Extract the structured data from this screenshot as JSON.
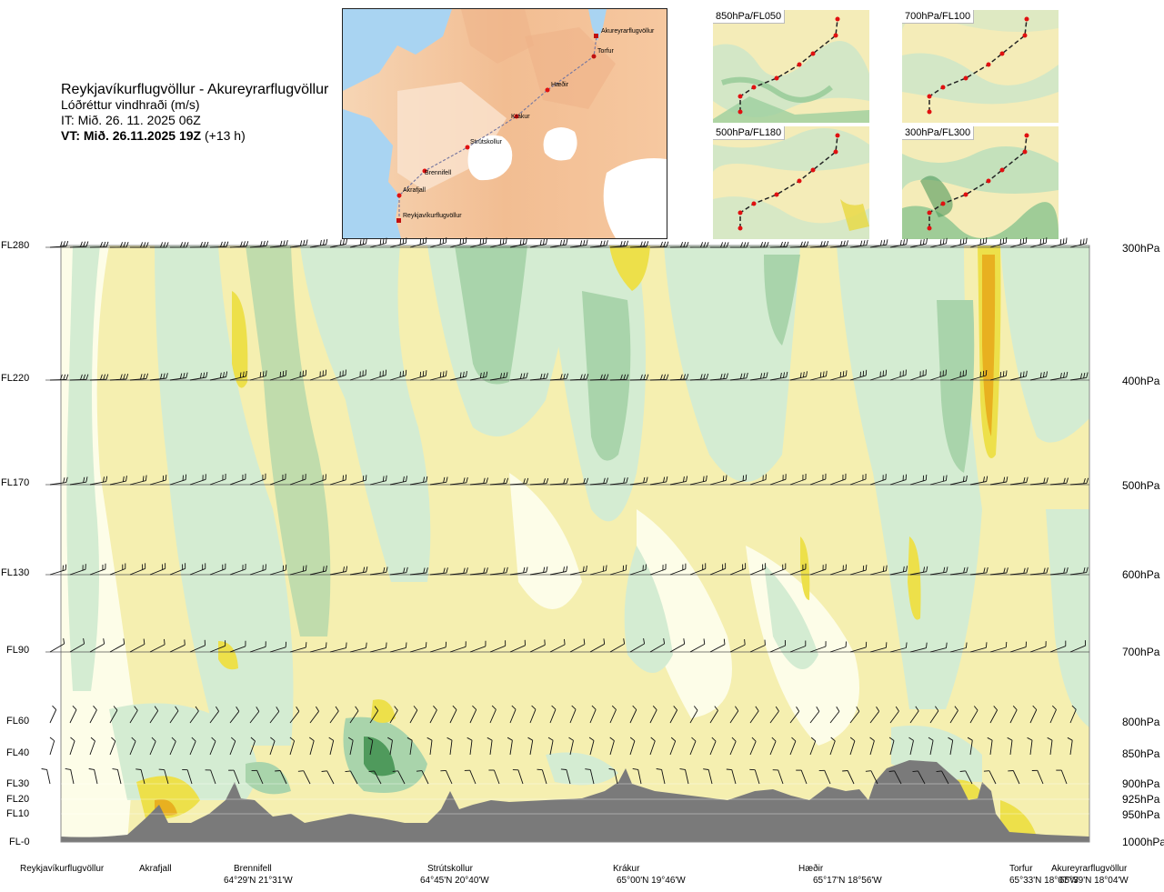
{
  "title": {
    "route": "Reykjavíkurflugvöllur - Akureyrarflugvöllur",
    "variable": "Lóðréttur vindhraði (m/s)",
    "it": "IT: Mið. 26. 11. 2025 06Z",
    "vt_bold": "VT: Mið. 26.11.2025 19Z",
    "vt_extra": "(+13 h)"
  },
  "route_map": {
    "waypoints": [
      {
        "name": "Akureyrarflugvöllur"
      },
      {
        "name": "Torfur"
      },
      {
        "name": "Hæðir"
      },
      {
        "name": "Krákur"
      },
      {
        "name": "Strútskollur"
      },
      {
        "name": "Brennifell"
      },
      {
        "name": "Akrafjall"
      },
      {
        "name": "Reykjavíkurflugvöllur"
      }
    ],
    "colors": {
      "land": "#f3c7a0",
      "glacier": "#ffffff",
      "sea": "#a9d4f2",
      "route": "#7a7aa0",
      "marker": "#e01010"
    }
  },
  "mini_maps": [
    {
      "label": "850hPa/FL050"
    },
    {
      "label": "700hPa/FL100"
    },
    {
      "label": "500hPa/FL180"
    },
    {
      "label": "300hPa/FL300"
    }
  ],
  "flight_levels": [
    {
      "label": "FL280"
    },
    {
      "label": "FL220"
    },
    {
      "label": "FL170"
    },
    {
      "label": "FL130"
    },
    {
      "label": "FL90"
    },
    {
      "label": "FL60"
    },
    {
      "label": "FL40"
    },
    {
      "label": "FL30"
    },
    {
      "label": "FL20"
    },
    {
      "label": "FL10"
    },
    {
      "label": "FL-0"
    }
  ],
  "pressure_levels": [
    {
      "label": "300hPa"
    },
    {
      "label": "400hPa"
    },
    {
      "label": "500hPa"
    },
    {
      "label": "600hPa"
    },
    {
      "label": "700hPa"
    },
    {
      "label": "800hPa"
    },
    {
      "label": "850hPa"
    },
    {
      "label": "900hPa"
    },
    {
      "label": "925hPa"
    },
    {
      "label": "950hPa"
    },
    {
      "label": "1000hPa"
    }
  ],
  "locations": [
    {
      "name": "Reykjavíkurflugvöllur",
      "coord": ""
    },
    {
      "name": "Akrafjall",
      "coord": ""
    },
    {
      "name": "Brennifell",
      "coord": "64°29'N 21°31'W"
    },
    {
      "name": "Strútskollur",
      "coord": "64°45'N 20°40'W"
    },
    {
      "name": "Krákur",
      "coord": "65°00'N 19°46'W"
    },
    {
      "name": "Hæðir",
      "coord": "65°17'N 18°56'W"
    },
    {
      "name": "Torfur",
      "coord": "65°33'N 18°07'W"
    },
    {
      "name": "Akureyrarflugvöllur",
      "coord": "65°39'N 18°04'W"
    }
  ],
  "colors": {
    "green_light": "#d4ecd2",
    "green_mid": "#a9d4ab",
    "green_dark": "#7fb88a",
    "white_band": "#fdfde8",
    "yellow_light": "#f5efb0",
    "yellow_mid": "#ede04a",
    "orange": "#e8b020",
    "terrain": "#7a7a7a"
  }
}
